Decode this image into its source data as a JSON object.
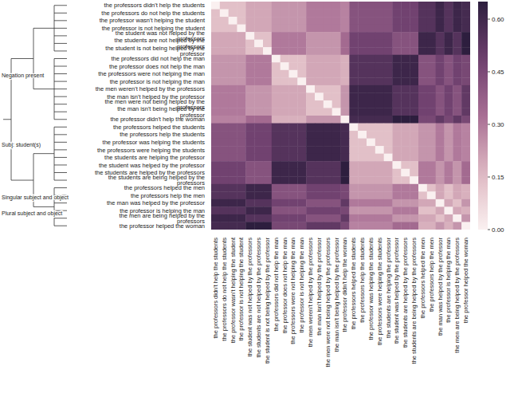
{
  "chart_data": {
    "type": "heatmap",
    "categories": [
      "the professors didn't help the students",
      "the professors do not help the students",
      "the professor wasn't helping the student",
      "the professor is not helping the student",
      "the student was not helped by the professors",
      "the students are not helped by the professors",
      "the student is not being helped by the professor",
      "the professors did not help the man",
      "the professor does not help the man",
      "the professors were not helping the man",
      "the professor is not helping the man",
      "the men weren't helped by the professors",
      "the man isn't helped by the professor",
      "the men were not being helped by the professors",
      "the man isn't being helped by the professor",
      "the professor didn't help the woman",
      "the professors helped the students",
      "the professors help the students",
      "the professor was helping the students",
      "the professors were helping the students",
      "the students are helping the professor",
      "the student was helped by the professor",
      "the students are helped by the professors",
      "the students are being helped by the professors",
      "the professors helped the men",
      "the professors help the men",
      "the man was helped by the professor",
      "the professor is helping the man",
      "the men are being helped by the professors",
      "the professor helped the woman"
    ],
    "values": [
      [
        0,
        0.14,
        0.14,
        0.14,
        0.2,
        0.2,
        0.2,
        0.24,
        0.24,
        0.24,
        0.24,
        0.3,
        0.3,
        0.3,
        0.3,
        0.28,
        0.42,
        0.42,
        0.42,
        0.42,
        0.42,
        0.48,
        0.48,
        0.48,
        0.55,
        0.55,
        0.61,
        0.55,
        0.61,
        0.59
      ],
      [
        0.14,
        0,
        0.14,
        0.14,
        0.2,
        0.2,
        0.2,
        0.24,
        0.24,
        0.24,
        0.24,
        0.3,
        0.3,
        0.3,
        0.3,
        0.28,
        0.42,
        0.42,
        0.42,
        0.42,
        0.42,
        0.48,
        0.48,
        0.48,
        0.55,
        0.55,
        0.61,
        0.55,
        0.61,
        0.59
      ],
      [
        0.14,
        0.14,
        0,
        0.14,
        0.2,
        0.2,
        0.2,
        0.24,
        0.24,
        0.24,
        0.24,
        0.3,
        0.3,
        0.3,
        0.3,
        0.28,
        0.42,
        0.42,
        0.42,
        0.42,
        0.42,
        0.48,
        0.48,
        0.48,
        0.55,
        0.55,
        0.61,
        0.55,
        0.61,
        0.59
      ],
      [
        0.14,
        0.14,
        0.14,
        0,
        0.2,
        0.2,
        0.2,
        0.24,
        0.24,
        0.24,
        0.24,
        0.3,
        0.3,
        0.3,
        0.3,
        0.28,
        0.42,
        0.42,
        0.42,
        0.42,
        0.42,
        0.48,
        0.48,
        0.48,
        0.55,
        0.55,
        0.61,
        0.55,
        0.61,
        0.59
      ],
      [
        0.2,
        0.2,
        0.2,
        0.2,
        0,
        0.14,
        0.14,
        0.3,
        0.3,
        0.3,
        0.3,
        0.24,
        0.24,
        0.24,
        0.24,
        0.34,
        0.48,
        0.48,
        0.48,
        0.48,
        0.48,
        0.42,
        0.42,
        0.42,
        0.61,
        0.61,
        0.55,
        0.61,
        0.55,
        0.65
      ],
      [
        0.2,
        0.2,
        0.2,
        0.2,
        0.14,
        0,
        0.14,
        0.3,
        0.3,
        0.3,
        0.3,
        0.24,
        0.24,
        0.24,
        0.24,
        0.34,
        0.48,
        0.48,
        0.48,
        0.48,
        0.48,
        0.42,
        0.42,
        0.42,
        0.61,
        0.61,
        0.55,
        0.61,
        0.55,
        0.65
      ],
      [
        0.2,
        0.2,
        0.2,
        0.2,
        0.14,
        0.14,
        0,
        0.3,
        0.3,
        0.3,
        0.3,
        0.24,
        0.24,
        0.24,
        0.24,
        0.34,
        0.48,
        0.48,
        0.48,
        0.48,
        0.48,
        0.42,
        0.42,
        0.42,
        0.61,
        0.61,
        0.55,
        0.61,
        0.55,
        0.65
      ],
      [
        0.24,
        0.24,
        0.24,
        0.24,
        0.3,
        0.3,
        0.3,
        0,
        0.14,
        0.14,
        0.14,
        0.2,
        0.2,
        0.2,
        0.2,
        0.18,
        0.55,
        0.55,
        0.55,
        0.55,
        0.55,
        0.61,
        0.61,
        0.61,
        0.42,
        0.42,
        0.48,
        0.42,
        0.48,
        0.46
      ],
      [
        0.24,
        0.24,
        0.24,
        0.24,
        0.3,
        0.3,
        0.3,
        0.14,
        0,
        0.14,
        0.14,
        0.2,
        0.2,
        0.2,
        0.2,
        0.18,
        0.55,
        0.55,
        0.55,
        0.55,
        0.55,
        0.61,
        0.61,
        0.61,
        0.42,
        0.42,
        0.48,
        0.42,
        0.48,
        0.46
      ],
      [
        0.24,
        0.24,
        0.24,
        0.24,
        0.3,
        0.3,
        0.3,
        0.14,
        0.14,
        0,
        0.14,
        0.2,
        0.2,
        0.2,
        0.2,
        0.18,
        0.55,
        0.55,
        0.55,
        0.55,
        0.55,
        0.61,
        0.61,
        0.61,
        0.42,
        0.42,
        0.48,
        0.42,
        0.48,
        0.46
      ],
      [
        0.24,
        0.24,
        0.24,
        0.24,
        0.3,
        0.3,
        0.3,
        0.14,
        0.14,
        0.14,
        0,
        0.2,
        0.2,
        0.2,
        0.2,
        0.18,
        0.55,
        0.55,
        0.55,
        0.55,
        0.55,
        0.61,
        0.61,
        0.61,
        0.42,
        0.42,
        0.48,
        0.42,
        0.48,
        0.46
      ],
      [
        0.3,
        0.3,
        0.3,
        0.3,
        0.24,
        0.24,
        0.24,
        0.2,
        0.2,
        0.2,
        0.2,
        0,
        0.14,
        0.14,
        0.14,
        0.24,
        0.61,
        0.61,
        0.61,
        0.61,
        0.61,
        0.55,
        0.55,
        0.55,
        0.48,
        0.48,
        0.42,
        0.48,
        0.42,
        0.52
      ],
      [
        0.3,
        0.3,
        0.3,
        0.3,
        0.24,
        0.24,
        0.24,
        0.2,
        0.2,
        0.2,
        0.2,
        0.14,
        0,
        0.14,
        0.14,
        0.24,
        0.61,
        0.61,
        0.61,
        0.61,
        0.61,
        0.55,
        0.55,
        0.55,
        0.48,
        0.48,
        0.42,
        0.48,
        0.42,
        0.52
      ],
      [
        0.3,
        0.3,
        0.3,
        0.3,
        0.24,
        0.24,
        0.24,
        0.2,
        0.2,
        0.2,
        0.2,
        0.14,
        0.14,
        0,
        0.14,
        0.24,
        0.61,
        0.61,
        0.61,
        0.61,
        0.61,
        0.55,
        0.55,
        0.55,
        0.48,
        0.48,
        0.42,
        0.48,
        0.42,
        0.52
      ],
      [
        0.3,
        0.3,
        0.3,
        0.3,
        0.24,
        0.24,
        0.24,
        0.2,
        0.2,
        0.2,
        0.2,
        0.14,
        0.14,
        0.14,
        0,
        0.24,
        0.61,
        0.61,
        0.61,
        0.61,
        0.61,
        0.55,
        0.55,
        0.55,
        0.48,
        0.48,
        0.42,
        0.48,
        0.42,
        0.52
      ],
      [
        0.28,
        0.28,
        0.28,
        0.28,
        0.34,
        0.34,
        0.34,
        0.18,
        0.18,
        0.18,
        0.18,
        0.24,
        0.24,
        0.24,
        0.24,
        0,
        0.59,
        0.59,
        0.59,
        0.59,
        0.59,
        0.65,
        0.65,
        0.65,
        0.46,
        0.46,
        0.52,
        0.46,
        0.52,
        0.46
      ],
      [
        0.42,
        0.42,
        0.42,
        0.42,
        0.48,
        0.48,
        0.48,
        0.55,
        0.55,
        0.55,
        0.55,
        0.61,
        0.61,
        0.61,
        0.61,
        0.59,
        0,
        0.14,
        0.14,
        0.14,
        0.14,
        0.2,
        0.2,
        0.2,
        0.24,
        0.24,
        0.3,
        0.24,
        0.3,
        0.28
      ],
      [
        0.42,
        0.42,
        0.42,
        0.42,
        0.48,
        0.48,
        0.48,
        0.55,
        0.55,
        0.55,
        0.55,
        0.61,
        0.61,
        0.61,
        0.61,
        0.59,
        0.14,
        0,
        0.14,
        0.14,
        0.14,
        0.2,
        0.2,
        0.2,
        0.24,
        0.24,
        0.3,
        0.24,
        0.3,
        0.28
      ],
      [
        0.42,
        0.42,
        0.42,
        0.42,
        0.48,
        0.48,
        0.48,
        0.55,
        0.55,
        0.55,
        0.55,
        0.61,
        0.61,
        0.61,
        0.61,
        0.59,
        0.14,
        0.14,
        0,
        0.14,
        0.14,
        0.2,
        0.2,
        0.2,
        0.24,
        0.24,
        0.3,
        0.24,
        0.3,
        0.28
      ],
      [
        0.42,
        0.42,
        0.42,
        0.42,
        0.48,
        0.48,
        0.48,
        0.55,
        0.55,
        0.55,
        0.55,
        0.61,
        0.61,
        0.61,
        0.61,
        0.59,
        0.14,
        0.14,
        0.14,
        0,
        0.14,
        0.2,
        0.2,
        0.2,
        0.24,
        0.24,
        0.3,
        0.24,
        0.3,
        0.28
      ],
      [
        0.42,
        0.42,
        0.42,
        0.42,
        0.48,
        0.48,
        0.48,
        0.55,
        0.55,
        0.55,
        0.55,
        0.61,
        0.61,
        0.61,
        0.61,
        0.59,
        0.14,
        0.14,
        0.14,
        0.14,
        0,
        0.2,
        0.2,
        0.2,
        0.24,
        0.24,
        0.3,
        0.24,
        0.3,
        0.28
      ],
      [
        0.48,
        0.48,
        0.48,
        0.48,
        0.42,
        0.42,
        0.42,
        0.61,
        0.61,
        0.61,
        0.61,
        0.55,
        0.55,
        0.55,
        0.55,
        0.65,
        0.2,
        0.2,
        0.2,
        0.2,
        0.2,
        0,
        0.14,
        0.14,
        0.3,
        0.3,
        0.24,
        0.3,
        0.24,
        0.34
      ],
      [
        0.48,
        0.48,
        0.48,
        0.48,
        0.42,
        0.42,
        0.42,
        0.61,
        0.61,
        0.61,
        0.61,
        0.55,
        0.55,
        0.55,
        0.55,
        0.65,
        0.2,
        0.2,
        0.2,
        0.2,
        0.2,
        0.14,
        0,
        0.14,
        0.3,
        0.3,
        0.24,
        0.3,
        0.24,
        0.34
      ],
      [
        0.48,
        0.48,
        0.48,
        0.48,
        0.42,
        0.42,
        0.42,
        0.61,
        0.61,
        0.61,
        0.61,
        0.55,
        0.55,
        0.55,
        0.55,
        0.65,
        0.2,
        0.2,
        0.2,
        0.2,
        0.2,
        0.14,
        0.14,
        0,
        0.3,
        0.3,
        0.24,
        0.3,
        0.24,
        0.34
      ],
      [
        0.55,
        0.55,
        0.55,
        0.55,
        0.61,
        0.61,
        0.61,
        0.42,
        0.42,
        0.42,
        0.42,
        0.48,
        0.48,
        0.48,
        0.48,
        0.46,
        0.24,
        0.24,
        0.24,
        0.24,
        0.24,
        0.3,
        0.3,
        0.3,
        0,
        0.14,
        0.2,
        0.14,
        0.2,
        0.18
      ],
      [
        0.55,
        0.55,
        0.55,
        0.55,
        0.61,
        0.61,
        0.61,
        0.42,
        0.42,
        0.42,
        0.42,
        0.48,
        0.48,
        0.48,
        0.48,
        0.46,
        0.24,
        0.24,
        0.24,
        0.24,
        0.24,
        0.3,
        0.3,
        0.3,
        0.14,
        0,
        0.2,
        0.14,
        0.2,
        0.18
      ],
      [
        0.61,
        0.61,
        0.61,
        0.61,
        0.55,
        0.55,
        0.55,
        0.48,
        0.48,
        0.48,
        0.48,
        0.42,
        0.42,
        0.42,
        0.42,
        0.52,
        0.3,
        0.3,
        0.3,
        0.3,
        0.3,
        0.24,
        0.24,
        0.24,
        0.2,
        0.2,
        0,
        0.2,
        0.14,
        0.24
      ],
      [
        0.55,
        0.55,
        0.55,
        0.55,
        0.61,
        0.61,
        0.61,
        0.42,
        0.42,
        0.42,
        0.42,
        0.48,
        0.48,
        0.48,
        0.48,
        0.46,
        0.24,
        0.24,
        0.24,
        0.24,
        0.24,
        0.3,
        0.3,
        0.3,
        0.14,
        0.14,
        0.2,
        0,
        0.2,
        0.18
      ],
      [
        0.61,
        0.61,
        0.61,
        0.61,
        0.55,
        0.55,
        0.55,
        0.48,
        0.48,
        0.48,
        0.48,
        0.42,
        0.42,
        0.42,
        0.42,
        0.52,
        0.3,
        0.3,
        0.3,
        0.3,
        0.3,
        0.24,
        0.24,
        0.24,
        0.2,
        0.2,
        0.14,
        0.2,
        0,
        0.24
      ],
      [
        0.59,
        0.59,
        0.59,
        0.59,
        0.65,
        0.65,
        0.65,
        0.46,
        0.46,
        0.46,
        0.46,
        0.52,
        0.52,
        0.52,
        0.52,
        0.46,
        0.28,
        0.28,
        0.28,
        0.28,
        0.28,
        0.34,
        0.34,
        0.34,
        0.18,
        0.18,
        0.24,
        0.18,
        0.24,
        0
      ]
    ],
    "colorbar": {
      "range": [
        0,
        0.65
      ],
      "ticks": [
        {
          "value": 0,
          "label": "0.00"
        },
        {
          "value": 0.15,
          "label": "0.15"
        },
        {
          "value": 0.3,
          "label": "0.30"
        },
        {
          "value": 0.45,
          "label": "0.45"
        },
        {
          "value": 0.6,
          "label": "0.60"
        }
      ]
    },
    "annotations": [
      "Negation present",
      "Subj: student(s)",
      "Singular subject and object",
      "Plural subject and object"
    ]
  }
}
